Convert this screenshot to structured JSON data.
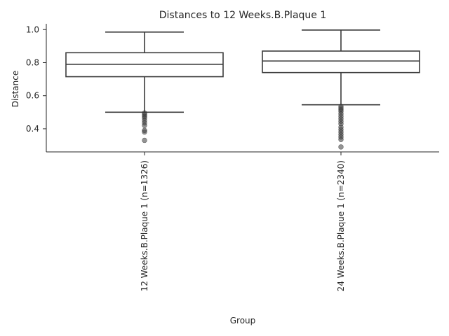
{
  "chart_data": {
    "type": "box",
    "title": "Distances to 12 Weeks.B.Plaque 1",
    "xlabel": "Group",
    "ylabel": "Distance",
    "ylim": [
      0.26,
      1.035
    ],
    "yticks": [
      0.4,
      0.6,
      0.8,
      1.0
    ],
    "ytick_labels": [
      "0.4",
      "0.6",
      "0.8",
      "1.0"
    ],
    "grid": false,
    "categories": [
      "12 Weeks.B.Plaque 1 (n=1326)",
      "24 Weeks.B.Plaque 1 (n=2340)"
    ],
    "boxes": [
      {
        "label": "12 Weeks.B.Plaque 1 (n=1326)",
        "whisker_low": 0.5,
        "q1": 0.715,
        "median": 0.79,
        "q3": 0.86,
        "whisker_high": 0.985,
        "outliers": [
          0.495,
          0.485,
          0.475,
          0.465,
          0.45,
          0.435,
          0.42,
          0.39,
          0.38,
          0.33
        ]
      },
      {
        "label": "24 Weeks.B.Plaque 1 (n=2340)",
        "whisker_low": 0.545,
        "q1": 0.74,
        "median": 0.81,
        "q3": 0.87,
        "whisker_high": 0.997,
        "outliers": [
          0.535,
          0.525,
          0.515,
          0.505,
          0.49,
          0.475,
          0.46,
          0.445,
          0.43,
          0.41,
          0.395,
          0.38,
          0.365,
          0.35,
          0.335,
          0.29
        ]
      }
    ]
  }
}
